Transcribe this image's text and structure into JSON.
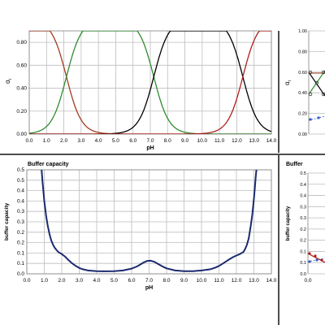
{
  "panels": {
    "alpha_fraction": {
      "y_label": "α",
      "y_label_sub": "i"
    },
    "buffer_capacity": {
      "header": "Buffer capacity"
    },
    "right_top": {
      "y_label": "α",
      "y_label_sub": "i"
    },
    "right_bottom": {
      "header": "Buffer"
    }
  },
  "colors": {
    "alpha0": "#a23a1e",
    "alpha1": "#2e8b2e",
    "alpha2": "#000000",
    "alpha3": "#b01e1e",
    "buffer": "#1b2a6e",
    "dotted": "#3a5cc8",
    "divider": "#4d4d4d",
    "grid": "#bdbdbd"
  },
  "chart_data": [
    {
      "type": "line",
      "xlabel": "pH",
      "ylabel": "αi",
      "xlim": [
        0.0,
        14.0
      ],
      "ylim": [
        0.0,
        0.9
      ],
      "x_ticks": [
        "0.0",
        "1.0",
        "2.0",
        "3.0",
        "4.0",
        "5.0",
        "6.0",
        "7.0",
        "8.0",
        "9.0",
        "10.0",
        "11.0",
        "12.0",
        "13.0",
        "14.0"
      ],
      "y_ticks": [
        "0.00",
        "0.20",
        "0.40",
        "0.60",
        "0.80"
      ],
      "grid": true,
      "model": {
        "kind": "triprotic-fractions",
        "pKa": [
          2.15,
          7.2,
          12.35
        ]
      },
      "series": [
        {
          "name": "",
          "color_key": "alpha0"
        },
        {
          "name": "",
          "color_key": "alpha1"
        },
        {
          "name": "",
          "color_key": "alpha2"
        },
        {
          "name": "",
          "color_key": "alpha3"
        }
      ]
    },
    {
      "type": "line",
      "title": "Buffer capacity",
      "xlabel": "pH",
      "ylabel": "buffer capacity",
      "xlim": [
        0.0,
        14.0
      ],
      "ylim": [
        0.0,
        0.5
      ],
      "x_ticks": [
        "0.0",
        "1.0",
        "2.0",
        "3.0",
        "4.0",
        "5.0",
        "6.0",
        "7.0",
        "8.0",
        "9.0",
        "10.0",
        "11.0",
        "12.0",
        "13.0",
        "14.0"
      ],
      "y_ticks": [
        "0.0",
        "0.1",
        "0.1",
        "0.2",
        "0.2",
        "0.3",
        "0.3",
        "0.4",
        "0.4",
        "0.5",
        "0.5"
      ],
      "grid": true,
      "series": [
        {
          "name": "",
          "color_key": "buffer",
          "x": [
            0.8,
            0.9,
            1.0,
            1.1,
            1.2,
            1.3,
            1.4,
            1.5,
            1.6,
            1.7,
            1.8,
            2.0,
            2.2,
            2.4,
            2.6,
            2.8,
            3.0,
            3.2,
            3.5,
            4.0,
            4.5,
            5.0,
            5.5,
            6.0,
            6.3,
            6.5,
            6.7,
            6.9,
            7.1,
            7.3,
            7.5,
            7.8,
            8.0,
            8.5,
            9.0,
            9.5,
            10.0,
            10.5,
            10.8,
            11.0,
            11.2,
            11.5,
            11.8,
            12.0,
            12.2,
            12.4,
            12.5,
            12.6,
            12.7,
            12.8,
            12.9,
            13.0,
            13.05,
            13.1,
            13.2
          ],
          "y": [
            0.55,
            0.44,
            0.35,
            0.28,
            0.23,
            0.19,
            0.16,
            0.14,
            0.125,
            0.115,
            0.105,
            0.095,
            0.082,
            0.065,
            0.05,
            0.038,
            0.028,
            0.022,
            0.016,
            0.013,
            0.012,
            0.013,
            0.016,
            0.025,
            0.035,
            0.045,
            0.055,
            0.062,
            0.063,
            0.058,
            0.048,
            0.034,
            0.026,
            0.016,
            0.013,
            0.013,
            0.016,
            0.022,
            0.03,
            0.038,
            0.048,
            0.065,
            0.08,
            0.088,
            0.095,
            0.105,
            0.12,
            0.14,
            0.17,
            0.22,
            0.28,
            0.36,
            0.41,
            0.46,
            0.55
          ]
        }
      ]
    },
    {
      "type": "line",
      "xlabel": "",
      "ylabel": "αi",
      "x_ticks": [],
      "y_ticks": [
        "1.00",
        "0.80",
        "0.60",
        "0.40",
        "0.20",
        "0.00"
      ],
      "ylim": [
        0.0,
        1.0
      ],
      "grid": true,
      "series": [
        {
          "name": "",
          "color_key": "alpha2"
        },
        {
          "name": "",
          "color_key": "alpha1"
        },
        {
          "name": "",
          "color_key": "alpha0"
        },
        {
          "name": "",
          "color_key": "dotted"
        }
      ]
    },
    {
      "type": "line",
      "title": "Buffer",
      "xlabel": "",
      "ylabel": "buffer capacity",
      "x_ticks": [
        "0.0"
      ],
      "y_ticks": [
        "0.5",
        "0.4",
        "0.4",
        "0.3",
        "0.3",
        "0.2",
        "0.2",
        "0.1",
        "0.1",
        "0.0"
      ],
      "ylim": [
        0.0,
        0.5
      ],
      "grid": true,
      "series": [
        {
          "name": "",
          "color_key": "alpha3"
        },
        {
          "name": "",
          "color_key": "dotted"
        }
      ]
    }
  ]
}
